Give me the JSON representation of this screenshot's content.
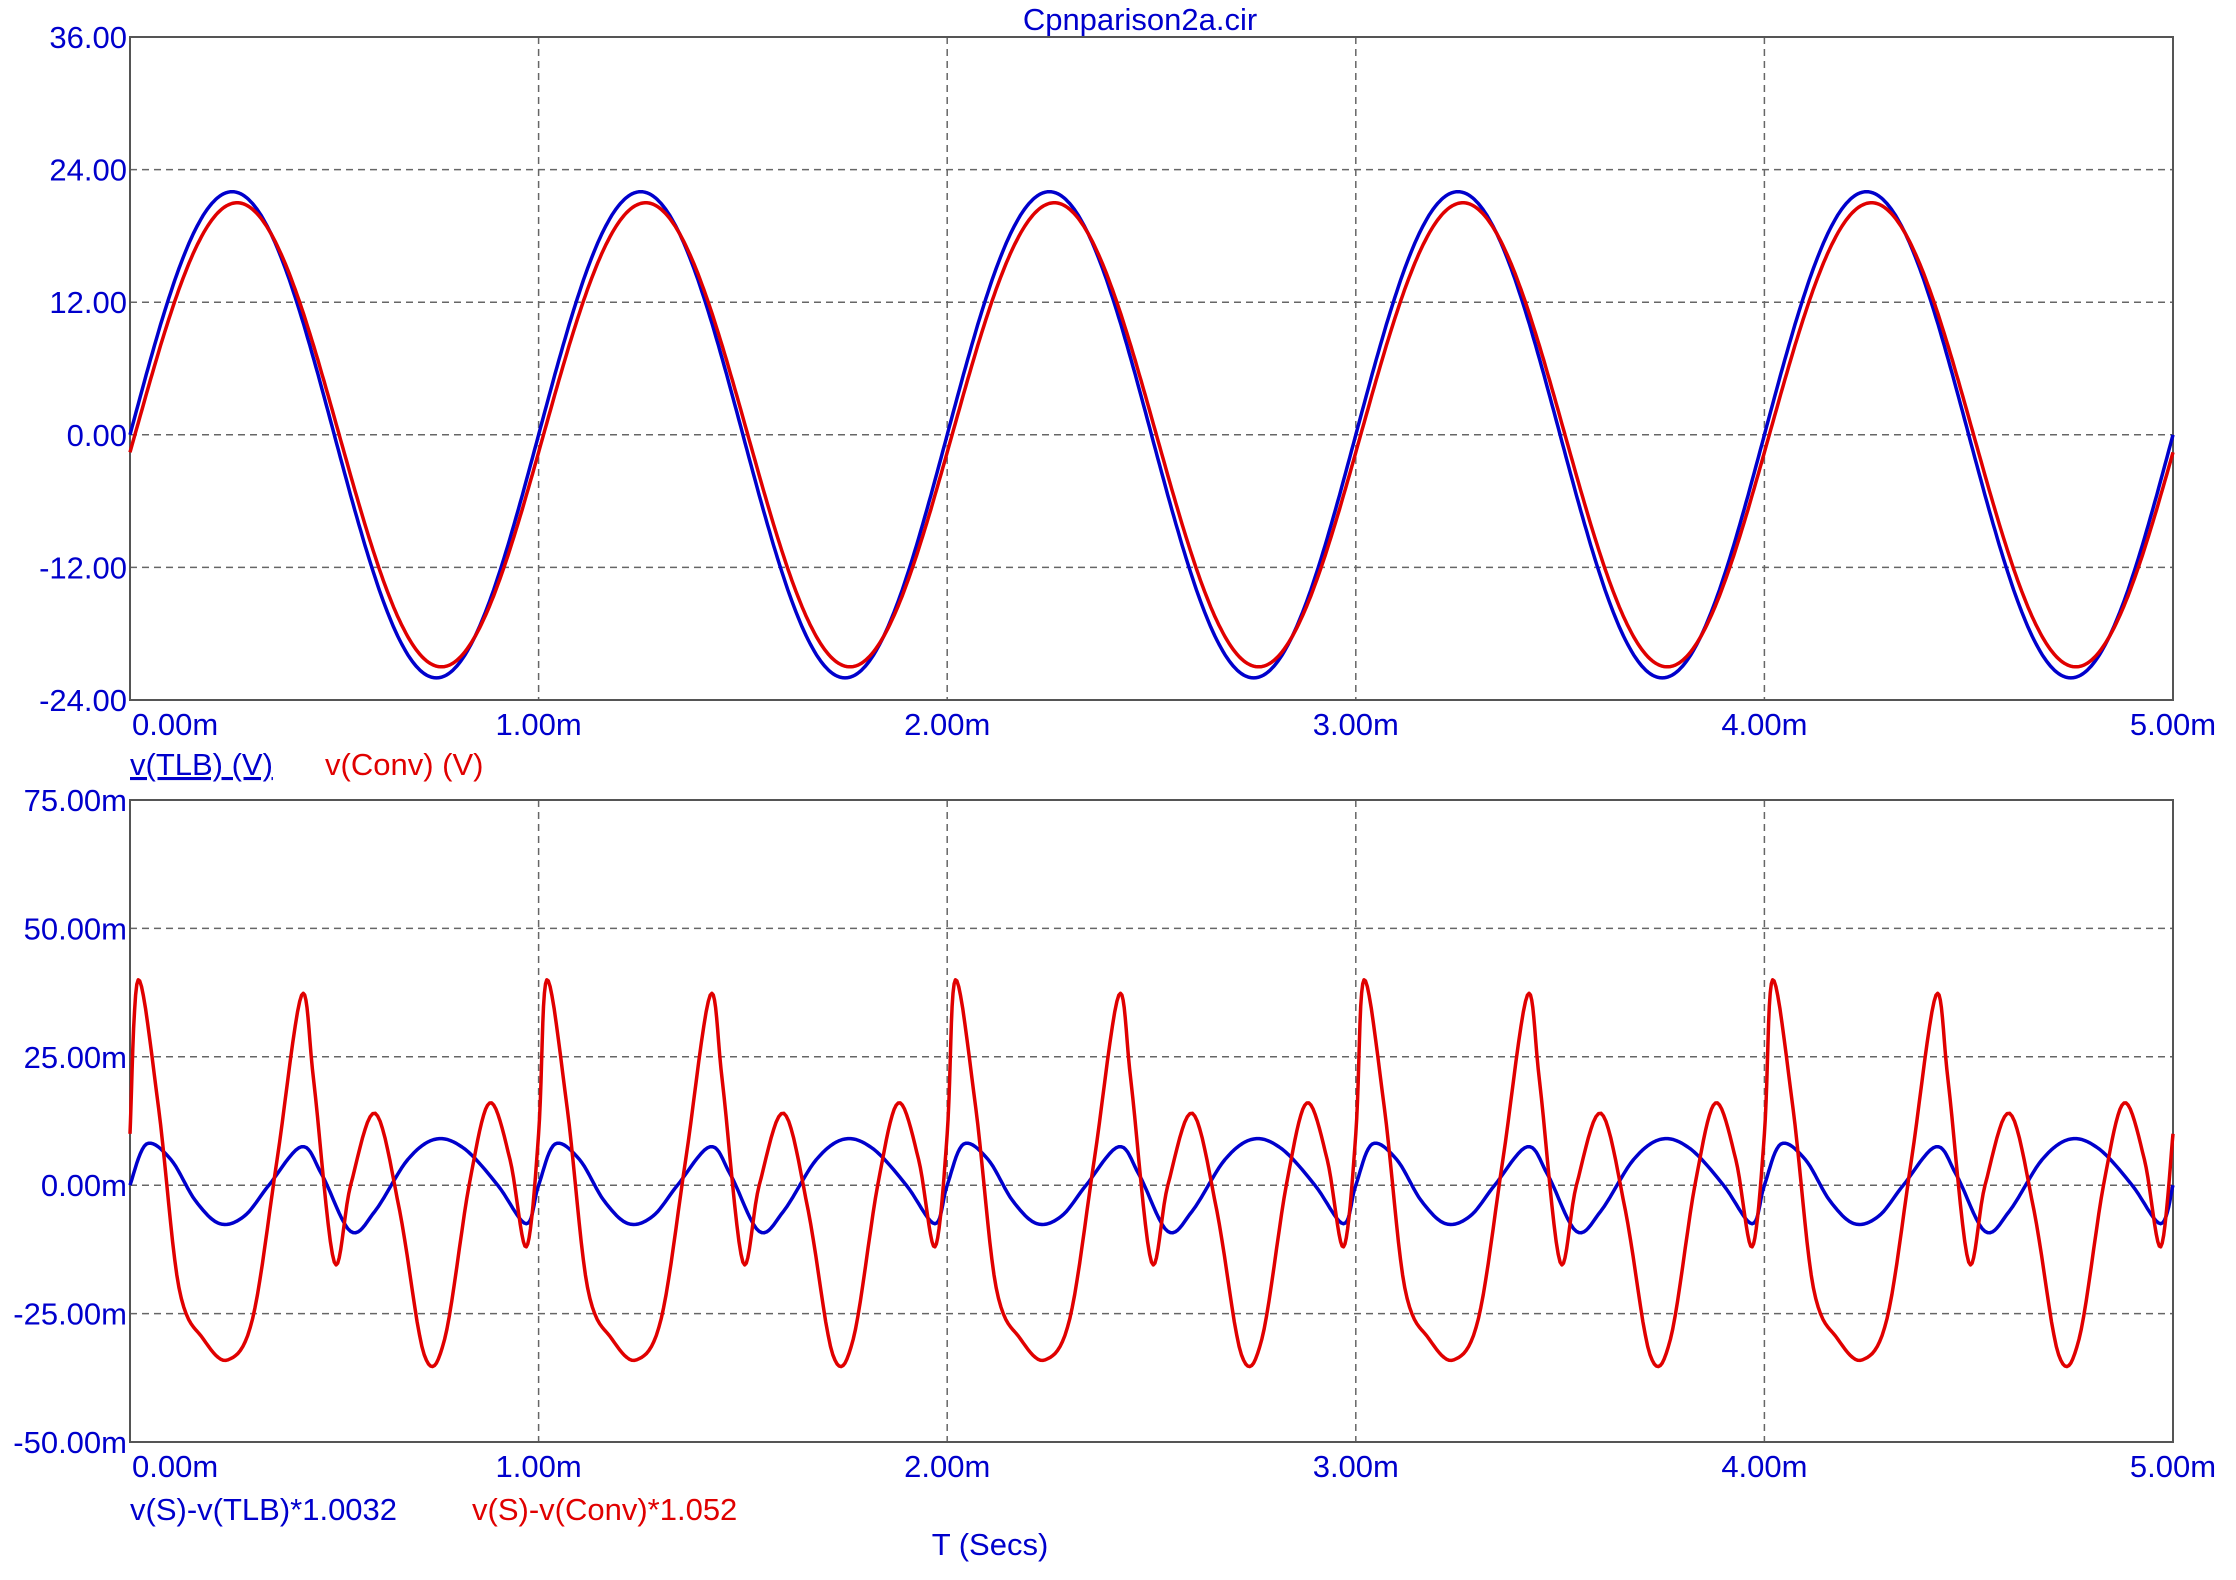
{
  "title": "Cpnparison2a.cir",
  "xlabel": "T (Secs)",
  "colors": {
    "axis_text": "#0000cc",
    "frame": "#555555",
    "grid": "#666666",
    "blue": "#0000cc",
    "red": "#e00000"
  },
  "chart_data": [
    {
      "type": "line",
      "title": "Cpnparison2a.cir",
      "xlabel": "",
      "ylabel": "",
      "xlim": [
        0,
        5
      ],
      "ylim": [
        -24,
        36
      ],
      "x_unit": "ms",
      "x_ticks": [
        "0.00m",
        "1.00m",
        "2.00m",
        "3.00m",
        "4.00m",
        "5.00m"
      ],
      "y_ticks": [
        "36.00",
        "24.00",
        "12.00",
        "0.00",
        "-12.00",
        "-24.00"
      ],
      "grid": true,
      "legend": [
        "v(TLB) (V)",
        "v(Conv) (V)"
      ],
      "series": [
        {
          "name": "v(TLB) (V)",
          "color": "#0000cc",
          "x": [
            0,
            0.25,
            0.5,
            0.75,
            1.0,
            1.25,
            1.5,
            1.75,
            2.0,
            2.25,
            2.5,
            2.75,
            3.0,
            3.25,
            3.5,
            3.75,
            4.0,
            4.25,
            4.5,
            4.75,
            5.0
          ],
          "values": [
            0,
            22,
            0,
            -22,
            0,
            22,
            0,
            -22,
            0,
            22,
            0,
            -22,
            0,
            22,
            0,
            -22,
            0,
            22,
            0,
            -22,
            0
          ]
        },
        {
          "name": "v(Conv) (V)",
          "color": "#e00000",
          "x": [
            0,
            0.25,
            0.5,
            0.75,
            1.0,
            1.25,
            1.5,
            1.75,
            2.0,
            2.25,
            2.5,
            2.75,
            3.0,
            3.25,
            3.5,
            3.75,
            4.0,
            4.25,
            4.5,
            4.75,
            5.0
          ],
          "values": [
            0,
            21,
            0,
            -21,
            0,
            21,
            0,
            -21,
            0,
            21,
            0,
            -21,
            0,
            21,
            0,
            -21,
            0,
            21,
            0,
            -21,
            0
          ]
        }
      ]
    },
    {
      "type": "line",
      "xlabel": "T (Secs)",
      "ylabel": "",
      "xlim": [
        0,
        5
      ],
      "ylim": [
        -50,
        75
      ],
      "x_unit": "ms",
      "y_unit": "m",
      "x_ticks": [
        "0.00m",
        "1.00m",
        "2.00m",
        "3.00m",
        "4.00m",
        "5.00m"
      ],
      "y_ticks": [
        "75.00m",
        "50.00m",
        "25.00m",
        "0.00m",
        "-25.00m",
        "-50.00m"
      ],
      "grid": true,
      "legend": [
        "v(S)-v(TLB)*1.0032",
        "v(S)-v(Conv)*1.052"
      ],
      "series": [
        {
          "name": "v(S)-v(TLB)*1.0032",
          "color": "#0000cc",
          "x": [
            0,
            0.04,
            0.1,
            0.16,
            0.22,
            0.28,
            0.34,
            0.42,
            0.47,
            0.54,
            0.6,
            0.68,
            0.75,
            0.82,
            0.9,
            0.97,
            1.0
          ],
          "values": [
            0,
            8,
            5,
            -3,
            -7.5,
            -6,
            0,
            7.5,
            2,
            -9,
            -5,
            5,
            9,
            7,
            0,
            -7.5,
            0
          ]
        },
        {
          "name": "v(S)-v(Conv)*1.052",
          "color": "#e00000",
          "x": [
            0,
            0.02,
            0.07,
            0.12,
            0.18,
            0.24,
            0.3,
            0.36,
            0.42,
            0.45,
            0.5,
            0.54,
            0.6,
            0.66,
            0.72,
            0.77,
            0.83,
            0.88,
            0.93,
            0.97,
            1.0
          ],
          "values": [
            10,
            40,
            15,
            -20,
            -30,
            -34,
            -26,
            5,
            37,
            20,
            -15,
            0,
            14,
            -5,
            -33,
            -30,
            0,
            16,
            5,
            -12,
            10
          ]
        }
      ]
    }
  ]
}
